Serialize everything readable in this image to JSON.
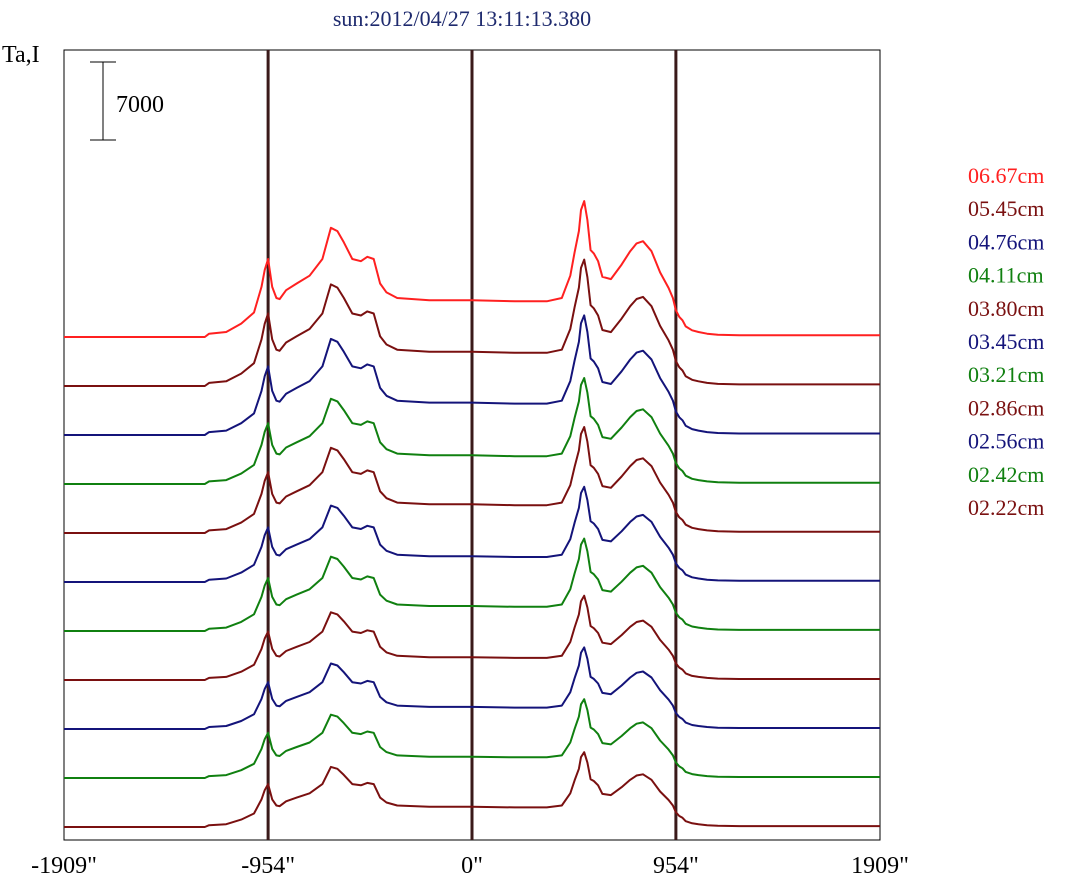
{
  "chart_data": {
    "type": "line",
    "title": "sun:2012/04/27 13:11:13.380",
    "ylabel": "Ta,I",
    "scale_bar_label": "7000",
    "scale_bar_value": 7000,
    "xlim": [
      -1909,
      1909
    ],
    "xticks": [
      {
        "value": -1909,
        "label": "-1909\""
      },
      {
        "value": -954,
        "label": "-954\""
      },
      {
        "value": 0,
        "label": "0\""
      },
      {
        "value": 954,
        "label": "954\""
      },
      {
        "value": 1909,
        "label": "1909\""
      }
    ],
    "vertical_lines": [
      -954,
      0,
      954
    ],
    "legend_position": "right",
    "series": [
      {
        "name": "06.67cm",
        "color": "#ff2020",
        "scale": 1.0
      },
      {
        "name": "05.45cm",
        "color": "#7a1010",
        "scale": 0.93
      },
      {
        "name": "04.76cm",
        "color": "#14147a",
        "scale": 0.88
      },
      {
        "name": "04.11cm",
        "color": "#108010",
        "scale": 0.78
      },
      {
        "name": "03.80cm",
        "color": "#7a1010",
        "scale": 0.78
      },
      {
        "name": "03.45cm",
        "color": "#14147a",
        "scale": 0.7
      },
      {
        "name": "03.21cm",
        "color": "#108010",
        "scale": 0.68
      },
      {
        "name": "02.86cm",
        "color": "#7a1010",
        "scale": 0.62
      },
      {
        "name": "02.56cm",
        "color": "#14147a",
        "scale": 0.6
      },
      {
        "name": "02.42cm",
        "color": "#108010",
        "scale": 0.58
      },
      {
        "name": "02.22cm",
        "color": "#7a1010",
        "scale": 0.55
      }
    ],
    "profile_shape": {
      "x": [
        -1909,
        -1250,
        -1230,
        -1150,
        -1080,
        -1020,
        -985,
        -970,
        -954,
        -935,
        -915,
        -900,
        -870,
        -820,
        -760,
        -700,
        -660,
        -630,
        -600,
        -560,
        -520,
        -490,
        -460,
        -430,
        -400,
        -350,
        -200,
        0,
        200,
        350,
        420,
        460,
        480,
        500,
        510,
        525,
        540,
        555,
        570,
        590,
        610,
        650,
        700,
        740,
        770,
        800,
        840,
        880,
        920,
        940,
        954,
        970,
        985,
        1000,
        1030,
        1060,
        1100,
        1150,
        1250,
        1909
      ],
      "y": [
        0,
        0,
        300,
        450,
        1200,
        2200,
        4500,
        6000,
        7000,
        4500,
        3500,
        3400,
        4200,
        4800,
        5500,
        7000,
        9800,
        9500,
        8500,
        7000,
        6800,
        7200,
        7000,
        4800,
        4000,
        3500,
        3300,
        3300,
        3200,
        3200,
        3500,
        5500,
        7600,
        9500,
        11400,
        12200,
        10500,
        7800,
        7500,
        6800,
        5400,
        5200,
        6500,
        7700,
        8400,
        8600,
        7700,
        5800,
        4400,
        3500,
        2400,
        1800,
        1500,
        950,
        600,
        450,
        300,
        200,
        150,
        150
      ]
    }
  }
}
